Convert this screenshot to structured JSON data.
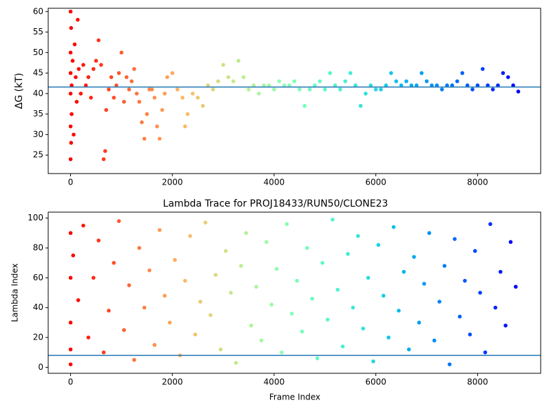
{
  "chart_data": [
    {
      "type": "scatter",
      "ylabel": "ΔG (kT)",
      "colormap": "rainbow_r",
      "hline": 41.6,
      "hline_color": "#1f77b4",
      "xlim": [
        -440,
        9240
      ],
      "xticks": [
        0,
        2000,
        4000,
        6000,
        8000
      ],
      "ylim": [
        20.5,
        60.8
      ],
      "yticks": [
        25,
        30,
        35,
        40,
        45,
        50,
        55,
        60
      ],
      "x": [
        0,
        0,
        0,
        0,
        0,
        0,
        10,
        10,
        20,
        20,
        40,
        60,
        80,
        100,
        120,
        140,
        160,
        200,
        250,
        300,
        350,
        400,
        450,
        500,
        550,
        600,
        650,
        680,
        700,
        750,
        800,
        850,
        900,
        950,
        1000,
        1050,
        1100,
        1150,
        1200,
        1250,
        1300,
        1350,
        1400,
        1450,
        1500,
        1550,
        1600,
        1650,
        1700,
        1750,
        1800,
        1850,
        1900,
        2000,
        2100,
        2200,
        2250,
        2300,
        2400,
        2500,
        2600,
        2700,
        2800,
        2900,
        3000,
        3100,
        3200,
        3300,
        3400,
        3500,
        3600,
        3700,
        3800,
        3900,
        4000,
        4100,
        4200,
        4300,
        4400,
        4500,
        4600,
        4700,
        4800,
        4900,
        5000,
        5100,
        5200,
        5300,
        5400,
        5500,
        5600,
        5700,
        5800,
        5900,
        6000,
        6100,
        6200,
        6300,
        6400,
        6500,
        6600,
        6700,
        6800,
        6900,
        7000,
        7100,
        7200,
        7300,
        7400,
        7500,
        7600,
        7700,
        7800,
        7900,
        8000,
        8100,
        8200,
        8300,
        8400,
        8500,
        8600,
        8700,
        8800
      ],
      "values": [
        60,
        50,
        40,
        32,
        24,
        45,
        56,
        28,
        35,
        42,
        48,
        30,
        52,
        44,
        38,
        58,
        46,
        40,
        47,
        42,
        44,
        39,
        46,
        48,
        53,
        47,
        24,
        26,
        36,
        41,
        44,
        39,
        42,
        45,
        50,
        38,
        44,
        41,
        43,
        46,
        40,
        38,
        33,
        29,
        35,
        41,
        41,
        39,
        32,
        29,
        36,
        40,
        44,
        45,
        41,
        39,
        32,
        35,
        40,
        39,
        37,
        42,
        41,
        43,
        47,
        44,
        43,
        48,
        44,
        41,
        42,
        40,
        42,
        42,
        41,
        43,
        42,
        42,
        43,
        41,
        37,
        41,
        42,
        43,
        41,
        45,
        42,
        41,
        43,
        45,
        42,
        37,
        40,
        42,
        41,
        41,
        42,
        45,
        43,
        42,
        43,
        42,
        42,
        45,
        43,
        42,
        42,
        41,
        42,
        42,
        43,
        45,
        42,
        41,
        42,
        46,
        42,
        41,
        42,
        45,
        44,
        42,
        40.5
      ]
    },
    {
      "type": "scatter",
      "title": "Lambda Trace for PROJ18433/RUN50/CLONE23",
      "xlabel": "Frame Index",
      "ylabel": "Lambda Index",
      "colormap": "rainbow_r",
      "hline": 8,
      "hline_color": "#1f77b4",
      "xlim": [
        -440,
        9240
      ],
      "xticks": [
        0,
        2000,
        4000,
        6000,
        8000
      ],
      "ylim": [
        -4,
        104
      ],
      "yticks": [
        0,
        20,
        40,
        60,
        80,
        100
      ],
      "x": [
        0,
        0,
        0,
        0,
        0,
        50,
        150,
        250,
        350,
        450,
        550,
        650,
        750,
        850,
        950,
        1050,
        1150,
        1250,
        1350,
        1450,
        1550,
        1650,
        1750,
        1850,
        1950,
        2050,
        2150,
        2250,
        2350,
        2450,
        2550,
        2650,
        2750,
        2850,
        2950,
        3050,
        3150,
        3250,
        3350,
        3450,
        3550,
        3650,
        3750,
        3850,
        3950,
        4050,
        4150,
        4250,
        4350,
        4450,
        4550,
        4650,
        4750,
        4850,
        4950,
        5050,
        5150,
        5250,
        5350,
        5450,
        5550,
        5650,
        5750,
        5850,
        5950,
        6050,
        6150,
        6250,
        6350,
        6450,
        6550,
        6650,
        6750,
        6850,
        6950,
        7050,
        7150,
        7250,
        7350,
        7450,
        7550,
        7650,
        7750,
        7850,
        7950,
        8050,
        8150,
        8250,
        8350,
        8450,
        8550,
        8650,
        8750
      ],
      "values": [
        90,
        60,
        30,
        12,
        2,
        75,
        45,
        95,
        20,
        60,
        85,
        10,
        38,
        70,
        98,
        25,
        55,
        5,
        80,
        40,
        65,
        15,
        92,
        48,
        30,
        72,
        8,
        58,
        88,
        22,
        44,
        97,
        35,
        62,
        12,
        78,
        50,
        3,
        68,
        90,
        28,
        54,
        18,
        84,
        42,
        66,
        10,
        96,
        36,
        58,
        24,
        80,
        46,
        6,
        70,
        32,
        99,
        52,
        14,
        76,
        40,
        88,
        26,
        60,
        4,
        82,
        48,
        20,
        94,
        38,
        64,
        12,
        74,
        30,
        56,
        90,
        18,
        44,
        68,
        2,
        86,
        34,
        58,
        22,
        78,
        50,
        10,
        96,
        40,
        64,
        28,
        84,
        54
      ]
    }
  ]
}
